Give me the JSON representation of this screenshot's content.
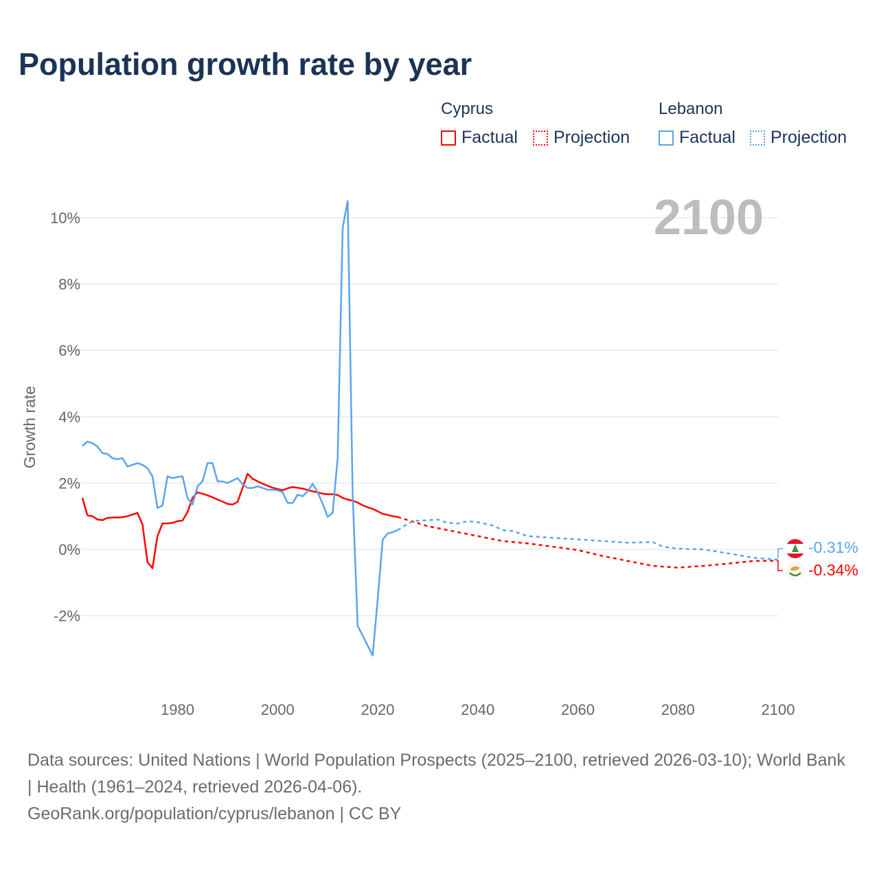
{
  "title": "Population growth rate by year",
  "legend": {
    "groups": [
      {
        "name": "Cyprus",
        "items": [
          "Factual",
          "Projection"
        ],
        "color": "#ff0000"
      },
      {
        "name": "Lebanon",
        "items": [
          "Factual",
          "Projection"
        ],
        "color": "#5ba4ea"
      }
    ]
  },
  "year_label": "2100",
  "end_labels": {
    "lebanon": "-0.31%",
    "cyprus": "-0.34%"
  },
  "footer": {
    "sources": "Data sources: United Nations | World Population Prospects (2025–2100, retrieved 2026-03-10); World Bank | Health (1961–2024, retrieved 2026-04-06).",
    "credit": "GeoRank.org/population/cyprus/lebanon | CC BY"
  },
  "chart_data": {
    "type": "line",
    "title": "Population growth rate by year",
    "xlabel": "",
    "ylabel": "Growth rate",
    "xlim": [
      1961,
      2100
    ],
    "ylim": [
      -3.5,
      10.5
    ],
    "xticks": [
      1980,
      2000,
      2020,
      2040,
      2060,
      2080,
      2100
    ],
    "xtick_labels": [
      "1980",
      "2000",
      "2020",
      "2040",
      "2060",
      "2080",
      "2100"
    ],
    "yticks": [
      -2,
      0,
      2,
      4,
      6,
      8,
      10
    ],
    "ytick_labels": [
      "-2%",
      "0%",
      "2%",
      "4%",
      "6%",
      "8%",
      "10%"
    ],
    "grid": true,
    "legend_position": "top-right",
    "series": [
      {
        "name": "Cyprus Factual",
        "color": "#ff0000",
        "style": "solid",
        "start_year": 1961,
        "values": [
          1.55,
          1.03,
          1.0,
          0.9,
          0.88,
          0.95,
          0.96,
          0.96,
          0.97,
          1.0,
          1.05,
          1.1,
          0.75,
          -0.38,
          -0.57,
          0.4,
          0.78,
          0.78,
          0.8,
          0.85,
          0.87,
          1.12,
          1.55,
          1.72,
          1.68,
          1.63,
          1.57,
          1.5,
          1.44,
          1.37,
          1.35,
          1.43,
          1.85,
          2.28,
          2.13,
          2.05,
          1.98,
          1.92,
          1.86,
          1.82,
          1.78,
          1.84,
          1.88,
          1.86,
          1.83,
          1.79,
          1.75,
          1.72,
          1.68,
          1.66,
          1.66,
          1.64,
          1.55,
          1.5,
          1.47,
          1.41,
          1.33,
          1.27,
          1.22,
          1.15,
          1.07,
          1.04,
          1.0,
          0.98
        ]
      },
      {
        "name": "Cyprus Projection",
        "color": "#ff0000",
        "style": "dotted",
        "x": [
          2024,
          2025,
          2030,
          2035,
          2040,
          2045,
          2050,
          2055,
          2060,
          2065,
          2070,
          2075,
          2080,
          2085,
          2090,
          2095,
          2100
        ],
        "values": [
          0.98,
          0.93,
          0.7,
          0.55,
          0.4,
          0.25,
          0.18,
          0.08,
          -0.02,
          -0.2,
          -0.35,
          -0.5,
          -0.55,
          -0.5,
          -0.43,
          -0.35,
          -0.34
        ]
      },
      {
        "name": "Lebanon Factual",
        "color": "#5ba4ea",
        "style": "solid",
        "start_year": 1961,
        "values": [
          3.12,
          3.25,
          3.2,
          3.1,
          2.9,
          2.88,
          2.75,
          2.72,
          2.75,
          2.5,
          2.55,
          2.6,
          2.55,
          2.45,
          2.2,
          1.25,
          1.32,
          2.2,
          2.15,
          2.18,
          2.2,
          1.55,
          1.35,
          1.9,
          2.05,
          2.6,
          2.6,
          2.05,
          2.05,
          2.0,
          2.07,
          2.15,
          1.97,
          1.85,
          1.85,
          1.9,
          1.85,
          1.8,
          1.8,
          1.78,
          1.72,
          1.4,
          1.4,
          1.65,
          1.6,
          1.75,
          1.98,
          1.72,
          1.38,
          0.98,
          1.1,
          2.75,
          9.7,
          10.5,
          1.7,
          -2.3,
          -2.6,
          -2.9,
          -3.2,
          -1.5,
          0.3,
          0.48,
          0.52,
          0.58
        ]
      },
      {
        "name": "Lebanon Projection",
        "color": "#5ba4ea",
        "style": "dotted",
        "x": [
          2024,
          2025,
          2027,
          2030,
          2032,
          2034,
          2036,
          2038,
          2040,
          2043,
          2045,
          2047,
          2050,
          2055,
          2060,
          2065,
          2070,
          2075,
          2077,
          2080,
          2085,
          2090,
          2095,
          2100
        ],
        "values": [
          0.58,
          0.68,
          0.85,
          0.88,
          0.9,
          0.8,
          0.78,
          0.85,
          0.82,
          0.72,
          0.58,
          0.55,
          0.4,
          0.35,
          0.3,
          0.25,
          0.2,
          0.22,
          0.08,
          0.02,
          0.0,
          -0.12,
          -0.25,
          -0.31
        ]
      }
    ]
  }
}
